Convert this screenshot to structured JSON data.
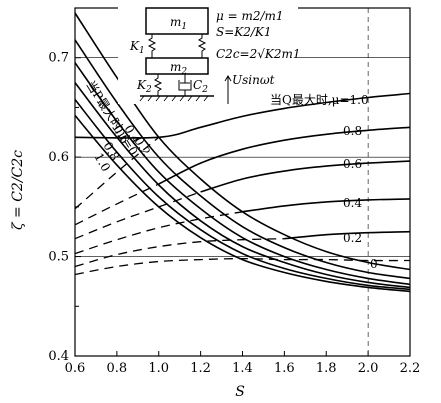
{
  "chart_data": {
    "type": "line",
    "xlabel": "S",
    "ylabel": "ζ = C2/C2c",
    "xlim": [
      0.6,
      2.2
    ],
    "ylim": [
      0.4,
      0.75
    ],
    "x_ticks": [
      "0.6",
      "0.8",
      "1.0",
      "1.2",
      "1.4",
      "1.6",
      "1.8",
      "2.0",
      "2.2"
    ],
    "y_ticks": [
      "0.4",
      "0.5",
      "0.6",
      "0.7"
    ],
    "grid": "major (y), dashed at x=2.0",
    "series": [
      {
        "name": "0",
        "group": "P",
        "style": "solid",
        "x": [
          0.6,
          0.8,
          1.0,
          1.2,
          1.4,
          1.6,
          1.8,
          2.0,
          2.2
        ],
        "y": [
          0.745,
          0.68,
          0.62,
          0.578,
          0.545,
          0.522,
          0.505,
          0.494,
          0.487
        ]
      },
      {
        "name": "0.2",
        "group": "P",
        "style": "solid",
        "x": [
          0.6,
          0.8,
          1.0,
          1.2,
          1.4,
          1.6,
          1.8,
          2.0,
          2.2
        ],
        "y": [
          0.718,
          0.655,
          0.6,
          0.561,
          0.53,
          0.509,
          0.494,
          0.484,
          0.478
        ]
      },
      {
        "name": "0.4",
        "group": "P",
        "style": "solid",
        "x": [
          0.6,
          0.8,
          1.0,
          1.2,
          1.4,
          1.6,
          1.8,
          2.0,
          2.2
        ],
        "y": [
          0.695,
          0.636,
          0.585,
          0.548,
          0.519,
          0.5,
          0.487,
          0.478,
          0.472
        ]
      },
      {
        "name": "0.6",
        "group": "P",
        "style": "solid",
        "x": [
          0.6,
          0.8,
          1.0,
          1.2,
          1.4,
          1.6,
          1.8,
          2.0,
          2.2
        ],
        "y": [
          0.675,
          0.62,
          0.572,
          0.536,
          0.51,
          0.494,
          0.482,
          0.474,
          0.469
        ]
      },
      {
        "name": "0.8",
        "group": "P",
        "style": "solid",
        "x": [
          0.6,
          0.8,
          1.0,
          1.2,
          1.4,
          1.6,
          1.8,
          2.0,
          2.2
        ],
        "y": [
          0.658,
          0.605,
          0.56,
          0.527,
          0.503,
          0.488,
          0.478,
          0.471,
          0.467
        ]
      },
      {
        "name": "1.0",
        "group": "P",
        "style": "solid",
        "x": [
          0.6,
          0.8,
          1.0,
          1.2,
          1.4,
          1.6,
          1.8,
          2.0,
          2.2
        ],
        "y": [
          0.642,
          0.592,
          0.55,
          0.519,
          0.497,
          0.484,
          0.475,
          0.469,
          0.465
        ]
      },
      {
        "name": "1.0",
        "group": "Q",
        "style": "solid",
        "x": [
          0.6,
          1.0,
          1.2,
          1.4,
          1.6,
          1.8,
          2.0,
          2.2
        ],
        "y": [
          0.62,
          0.62,
          0.63,
          0.641,
          0.649,
          0.655,
          0.66,
          0.664
        ]
      },
      {
        "name": "0.8",
        "group": "Q",
        "style": "solid",
        "x": [
          1.0,
          1.2,
          1.4,
          1.6,
          1.8,
          2.0,
          2.2
        ],
        "y": [
          0.573,
          0.594,
          0.608,
          0.617,
          0.623,
          0.627,
          0.63
        ]
      },
      {
        "name": "0.6",
        "group": "Q",
        "style": "solid",
        "x": [
          1.2,
          1.4,
          1.6,
          1.8,
          2.0,
          2.2
        ],
        "y": [
          0.565,
          0.578,
          0.586,
          0.591,
          0.594,
          0.596
        ]
      },
      {
        "name": "0.4",
        "group": "Q",
        "style": "solid",
        "x": [
          1.4,
          1.6,
          1.8,
          2.0,
          2.2
        ],
        "y": [
          0.545,
          0.551,
          0.555,
          0.557,
          0.558
        ]
      },
      {
        "name": "0.2",
        "group": "Q",
        "style": "solid",
        "x": [
          1.6,
          1.8,
          2.0,
          2.2
        ],
        "y": [
          0.518,
          0.522,
          0.524,
          0.525
        ]
      },
      {
        "name": "1.0",
        "group": "Q",
        "style": "dashed",
        "x": [
          0.6,
          0.8,
          1.0
        ],
        "y": [
          0.548,
          0.585,
          0.62
        ]
      },
      {
        "name": "0.8",
        "group": "Q",
        "style": "dashed",
        "x": [
          0.6,
          0.8,
          1.0
        ],
        "y": [
          0.532,
          0.553,
          0.573
        ]
      },
      {
        "name": "0.6",
        "group": "Q",
        "style": "dashed",
        "x": [
          0.6,
          0.8,
          1.0,
          1.2
        ],
        "y": [
          0.518,
          0.535,
          0.55,
          0.565
        ]
      },
      {
        "name": "0.4",
        "group": "Q",
        "style": "dashed",
        "x": [
          0.6,
          0.8,
          1.0,
          1.2,
          1.4
        ],
        "y": [
          0.503,
          0.517,
          0.529,
          0.538,
          0.545
        ]
      },
      {
        "name": "0.2",
        "group": "Q",
        "style": "dashed",
        "x": [
          0.6,
          0.8,
          1.0,
          1.2,
          1.4,
          1.6
        ],
        "y": [
          0.49,
          0.502,
          0.51,
          0.515,
          0.517,
          0.518
        ]
      },
      {
        "name": "0",
        "group": "Q",
        "style": "dashed",
        "x": [
          0.6,
          0.8,
          1.0,
          1.2,
          1.4,
          1.6,
          1.8,
          2.0,
          2.2
        ],
        "y": [
          0.482,
          0.49,
          0.495,
          0.497,
          0.498,
          0.497,
          0.497,
          0.496,
          0.496
        ]
      }
    ],
    "annotations": {
      "p_curve_title": "当P最大时,μ=0",
      "p_labels": [
        "0.2",
        "0.4",
        "0.6",
        "0.8",
        "1.0"
      ],
      "q_curve_title": "当Q最大时,μ=1.0",
      "q_labels": [
        "0.8",
        "0.6",
        "0.4",
        "0.2",
        "0"
      ]
    },
    "inset": {
      "m1": "m",
      "m1_sub": "1",
      "m2": "m",
      "m2_sub": "2",
      "k1": "K",
      "k1_sub": "1",
      "k2": "K",
      "k2_sub": "2",
      "c2": "C",
      "c2_sub": "2",
      "mu_formula": "μ = m2/m1",
      "s_formula": "S=K2/K1",
      "c2c_formula": "C2c=2√K2m1",
      "excitation": "Usinωt"
    }
  }
}
